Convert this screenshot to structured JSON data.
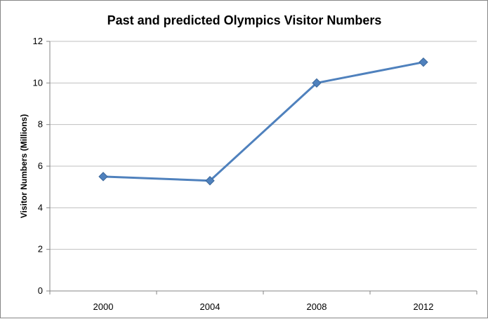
{
  "chart_data": {
    "type": "line",
    "title": "Past and predicted Olympics Visitor Numbers",
    "xlabel": "",
    "ylabel": "Visitor Numbers (Millions)",
    "categories": [
      "2000",
      "2004",
      "2008",
      "2012"
    ],
    "values": [
      5.5,
      5.3,
      10,
      11
    ],
    "ylim": [
      0,
      12
    ],
    "yticks": [
      0,
      2,
      4,
      6,
      8,
      10,
      12
    ],
    "grid": true,
    "legend": "none",
    "line_color": "#4F81BD",
    "grid_color": "#BFBFBF",
    "axis_color": "#868686"
  }
}
